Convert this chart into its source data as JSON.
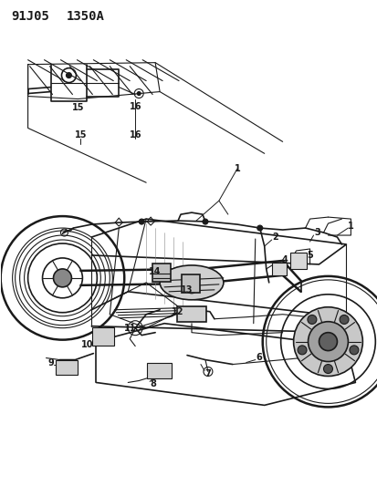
{
  "title1": "91J05",
  "title2": "1350A",
  "background_color": "#ffffff",
  "line_color": "#1a1a1a",
  "fig_width": 4.14,
  "fig_height": 5.33,
  "dpi": 100
}
